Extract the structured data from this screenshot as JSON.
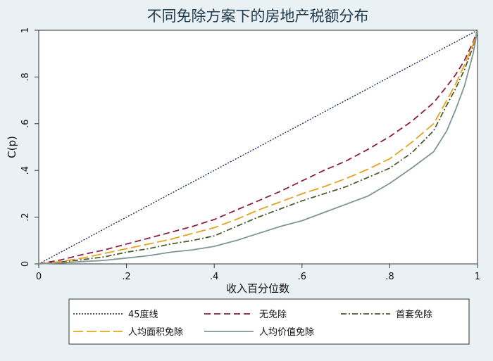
{
  "chart_data": {
    "type": "line",
    "title": "不同免除方案下的房地产税额分布",
    "xlabel": "收入百分位数",
    "ylabel": "C(p)",
    "xlim": [
      0,
      1
    ],
    "ylim": [
      0,
      1
    ],
    "x_ticks": [
      {
        "value": 0,
        "label": "0"
      },
      {
        "value": 0.2,
        "label": ".2"
      },
      {
        "value": 0.4,
        "label": ".4"
      },
      {
        "value": 0.6,
        "label": ".6"
      },
      {
        "value": 0.8,
        "label": ".8"
      },
      {
        "value": 1,
        "label": "1"
      }
    ],
    "y_ticks": [
      {
        "value": 0,
        "label": "0"
      },
      {
        "value": 0.2,
        "label": ".2"
      },
      {
        "value": 0.4,
        "label": ".4"
      },
      {
        "value": 0.6,
        "label": ".6"
      },
      {
        "value": 0.8,
        "label": ".8"
      },
      {
        "value": 1,
        "label": "1"
      }
    ],
    "grid": false,
    "legend_position": "bottom",
    "x": [
      0,
      0.05,
      0.1,
      0.15,
      0.2,
      0.25,
      0.3,
      0.35,
      0.4,
      0.45,
      0.5,
      0.55,
      0.6,
      0.65,
      0.7,
      0.75,
      0.8,
      0.85,
      0.9,
      0.93,
      0.95,
      0.97,
      0.99,
      1
    ],
    "series": [
      {
        "name": "45度线",
        "color": "#1a2f5a",
        "dash": "2,2",
        "values": [
          0,
          0.05,
          0.1,
          0.15,
          0.2,
          0.25,
          0.3,
          0.35,
          0.4,
          0.45,
          0.5,
          0.55,
          0.6,
          0.65,
          0.7,
          0.75,
          0.8,
          0.85,
          0.9,
          0.93,
          0.95,
          0.97,
          0.99,
          1
        ]
      },
      {
        "name": "无免除",
        "color": "#8b1e3f",
        "dash": "9,5",
        "values": [
          0,
          0.017,
          0.04,
          0.06,
          0.085,
          0.11,
          0.135,
          0.16,
          0.19,
          0.23,
          0.27,
          0.31,
          0.355,
          0.4,
          0.44,
          0.49,
          0.545,
          0.61,
          0.69,
          0.76,
          0.81,
          0.87,
          0.95,
          1
        ]
      },
      {
        "name": "首套免除",
        "color": "#4a5d2e",
        "dash": "8,3,2,3",
        "values": [
          0,
          0.008,
          0.018,
          0.03,
          0.05,
          0.065,
          0.085,
          0.1,
          0.12,
          0.16,
          0.2,
          0.235,
          0.27,
          0.3,
          0.33,
          0.37,
          0.41,
          0.475,
          0.57,
          0.68,
          0.75,
          0.83,
          0.93,
          1
        ]
      },
      {
        "name": "人均面积免除",
        "color": "#e8a21e",
        "dash": "14,5",
        "values": [
          0,
          0.01,
          0.025,
          0.045,
          0.065,
          0.085,
          0.105,
          0.13,
          0.155,
          0.19,
          0.23,
          0.265,
          0.3,
          0.33,
          0.365,
          0.405,
          0.45,
          0.52,
          0.6,
          0.7,
          0.77,
          0.85,
          0.94,
          1
        ]
      },
      {
        "name": "人均价值免除",
        "color": "#7f9597",
        "dash": "",
        "values": [
          0,
          0.004,
          0.01,
          0.015,
          0.025,
          0.035,
          0.05,
          0.06,
          0.075,
          0.1,
          0.13,
          0.16,
          0.185,
          0.22,
          0.255,
          0.29,
          0.345,
          0.41,
          0.48,
          0.57,
          0.66,
          0.76,
          0.9,
          1
        ]
      }
    ]
  }
}
